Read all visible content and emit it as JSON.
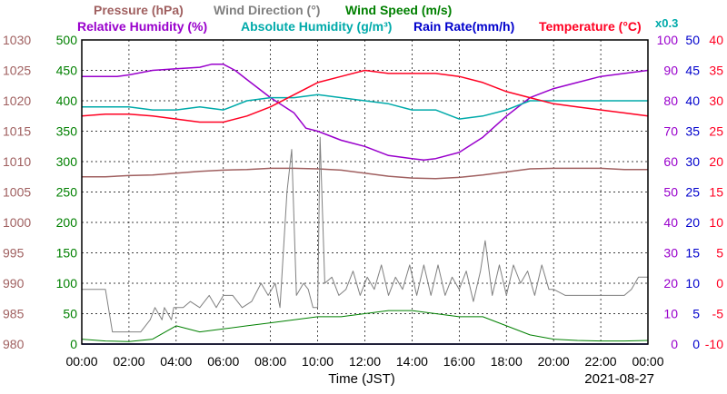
{
  "chart_data": {
    "type": "line",
    "date": "2021-08-27",
    "xlabel": "Time (JST)",
    "x_range": [
      0,
      24
    ],
    "x_ticks": [
      "00:00",
      "02:00",
      "04:00",
      "06:00",
      "08:00",
      "10:00",
      "12:00",
      "14:00",
      "16:00",
      "18:00",
      "20:00",
      "22:00",
      "00:00"
    ],
    "grid": true,
    "legend_row1": [
      {
        "label": "Pressure (hPa)",
        "color": "#a06060"
      },
      {
        "label": "Wind Direction (°)",
        "color": "#808080"
      },
      {
        "label": "Wind Speed (m/s)",
        "color": "#008000"
      }
    ],
    "legend_row2": [
      {
        "label": "Relative Humidity (%)",
        "color": "#9900cc"
      },
      {
        "label": "Absolute Humidity (g/m³)",
        "color": "#00aaaa"
      },
      {
        "label": "Rain Rate(mm/h)",
        "color": "#0000cc"
      },
      {
        "label": "Temperature (°C)",
        "color": "#ff0022"
      }
    ],
    "axes": {
      "pressure": {
        "range": [
          980,
          1030
        ],
        "ticks": [
          "1030",
          "1025",
          "1020",
          "1015",
          "1010",
          "1005",
          "1000",
          "995",
          "990",
          "985",
          "980"
        ],
        "color": "#a06060"
      },
      "wind": {
        "range": [
          0,
          500
        ],
        "ticks": [
          "500",
          "450",
          "400",
          "350",
          "300",
          "250",
          "200",
          "150",
          "100",
          "50",
          "0"
        ],
        "color": "#008000"
      },
      "humidity": {
        "range": [
          0,
          100
        ],
        "ticks": [
          "100",
          "90",
          "80",
          "70",
          "60",
          "50",
          "40",
          "30",
          "20",
          "10",
          "0"
        ],
        "color": "#9900cc"
      },
      "rain": {
        "range": [
          0,
          50
        ],
        "ticks": [
          "50",
          "45",
          "40",
          "35",
          "30",
          "25",
          "20",
          "15",
          "10",
          "5",
          "0"
        ],
        "color": "#0000cc"
      },
      "temperature": {
        "range": [
          -10,
          40
        ],
        "ticks": [
          "40",
          "35",
          "30",
          "25",
          "20",
          "15",
          "10",
          "5",
          "0",
          "-5",
          "-10"
        ],
        "color": "#ff0022"
      },
      "abs_humidity_scale": "x0.3"
    },
    "series": [
      {
        "name": "Relative Humidity (%)",
        "color": "#9900cc",
        "axis": "humidity",
        "x": [
          0,
          1,
          1.5,
          2,
          3,
          4,
          5,
          5.5,
          6,
          6.5,
          7,
          8,
          9,
          9.5,
          10,
          11,
          12,
          13,
          14,
          14.5,
          15,
          16,
          17,
          18,
          19,
          20,
          21,
          22,
          23,
          24
        ],
        "y": [
          88,
          88,
          88,
          88.5,
          90,
          90.5,
          91,
          92,
          92,
          90,
          87,
          81,
          76,
          71,
          70,
          67,
          65,
          62,
          61,
          60.5,
          61,
          63,
          68,
          75,
          81,
          84,
          86,
          88,
          89,
          90
        ]
      },
      {
        "name": "Absolute Humidity (g/m³)",
        "color": "#00aaaa",
        "axis": "humidity",
        "x": [
          0,
          1,
          2,
          3,
          4,
          5,
          6,
          7,
          8,
          9,
          10,
          11,
          12,
          13,
          14,
          15,
          16,
          17,
          18,
          19,
          20,
          21,
          22,
          23,
          24
        ],
        "y": [
          78,
          78,
          78,
          77,
          77,
          78,
          77,
          80,
          81,
          81,
          82,
          81,
          80,
          79,
          77,
          77,
          74,
          75,
          77,
          80,
          80,
          80,
          80,
          80,
          80
        ]
      },
      {
        "name": "Temperature (°C)",
        "color": "#ff0022",
        "axis": "temperature",
        "x": [
          0,
          1,
          2,
          3,
          4,
          5,
          6,
          7,
          8,
          9,
          10,
          11,
          12,
          13,
          14,
          15,
          16,
          17,
          18,
          19,
          20,
          21,
          22,
          23,
          24
        ],
        "y": [
          27.5,
          27.8,
          27.8,
          27.5,
          27,
          26.5,
          26.5,
          27.5,
          29,
          31,
          33,
          34,
          35,
          34.5,
          34.5,
          34.5,
          34,
          33,
          31.5,
          30.5,
          29.5,
          29,
          28.5,
          28,
          27.5
        ]
      },
      {
        "name": "Pressure (hPa)",
        "color": "#a06060",
        "axis": "pressure",
        "x": [
          0,
          1,
          2,
          3,
          4,
          5,
          6,
          7,
          8,
          9,
          10,
          11,
          12,
          13,
          14,
          15,
          16,
          17,
          18,
          19,
          20,
          21,
          22,
          23,
          24
        ],
        "y": [
          1007.5,
          1007.5,
          1007.7,
          1007.8,
          1008.1,
          1008.4,
          1008.6,
          1008.7,
          1008.9,
          1008.9,
          1008.8,
          1008.6,
          1008.1,
          1007.6,
          1007.3,
          1007.2,
          1007.4,
          1007.8,
          1008.3,
          1008.8,
          1008.9,
          1008.9,
          1008.9,
          1008.7,
          1008.7
        ]
      },
      {
        "name": "Wind Direction (°)",
        "color": "#808080",
        "axis": "wind",
        "x": [
          0,
          0.5,
          1,
          1.3,
          1.8,
          2.5,
          2.9,
          3.1,
          3.4,
          3.5,
          3.8,
          3.9,
          4.3,
          4.6,
          5,
          5.4,
          5.7,
          6,
          6.4,
          6.8,
          7.2,
          7.6,
          7.9,
          8.2,
          8.4,
          8.7,
          8.9,
          9.1,
          9.4,
          9.6,
          9.8,
          10,
          10.1,
          10.3,
          10.6,
          10.9,
          11.2,
          11.5,
          11.8,
          12.1,
          12.4,
          12.7,
          13,
          13.3,
          13.6,
          13.9,
          14.2,
          14.5,
          14.8,
          15.1,
          15.4,
          15.7,
          16,
          16.3,
          16.6,
          16.9,
          17.1,
          17.4,
          17.7,
          18,
          18.3,
          18.6,
          18.9,
          19.2,
          19.5,
          19.8,
          20,
          20.5,
          21,
          21.5,
          22,
          22.5,
          23,
          23.3,
          23.6,
          24
        ],
        "y": [
          90,
          90,
          90,
          20,
          20,
          20,
          40,
          60,
          40,
          60,
          40,
          60,
          60,
          70,
          60,
          80,
          60,
          80,
          80,
          60,
          70,
          100,
          80,
          100,
          60,
          250,
          320,
          80,
          100,
          90,
          60,
          60,
          340,
          100,
          110,
          80,
          90,
          120,
          80,
          110,
          90,
          130,
          80,
          110,
          90,
          130,
          80,
          130,
          80,
          130,
          80,
          110,
          90,
          120,
          70,
          120,
          170,
          80,
          130,
          80,
          130,
          100,
          120,
          80,
          130,
          90,
          90,
          80,
          80,
          80,
          80,
          80,
          80,
          90,
          110,
          110
        ]
      },
      {
        "name": "Wind Speed (m/s)",
        "color": "#008000",
        "axis": "wind",
        "x": [
          0,
          1,
          2,
          3,
          4,
          5,
          6,
          7,
          8,
          9,
          10,
          11,
          12,
          13,
          14,
          15,
          16,
          17,
          18,
          19,
          20,
          21,
          22,
          23,
          24
        ],
        "y": [
          8,
          5,
          4,
          8,
          30,
          20,
          25,
          30,
          35,
          40,
          45,
          45,
          50,
          55,
          55,
          50,
          45,
          45,
          30,
          15,
          8,
          6,
          5,
          5,
          6
        ]
      },
      {
        "name": "Rain Rate(mm/h)",
        "color": "#0000cc",
        "axis": "rain",
        "x": [
          0,
          24
        ],
        "y": [
          0,
          0
        ]
      }
    ]
  }
}
